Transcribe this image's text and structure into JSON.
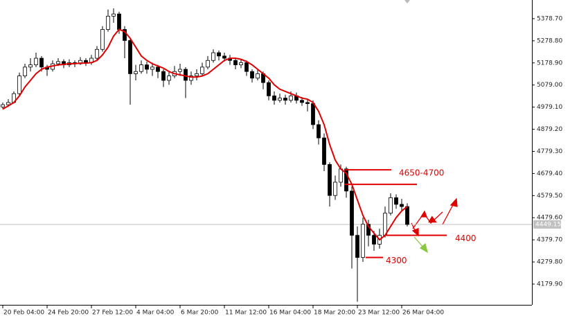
{
  "chart_data": {
    "type": "candlestick",
    "categories": [
      "20 Feb 04:00",
      null,
      null,
      null,
      null,
      null,
      null,
      null,
      "24 Feb 20:00",
      null,
      null,
      null,
      null,
      null,
      null,
      null,
      "27 Feb 12:00",
      null,
      null,
      null,
      null,
      null,
      null,
      null,
      "4 Mar 04:00",
      null,
      null,
      null,
      null,
      null,
      null,
      null,
      "6 Mar 20:00",
      null,
      null,
      null,
      null,
      null,
      null,
      null,
      "11 Mar 12:00",
      null,
      null,
      null,
      null,
      null,
      null,
      null,
      "16 Mar 04:00",
      null,
      null,
      null,
      null,
      null,
      null,
      null,
      "18 Mar 20:00",
      null,
      null,
      null,
      null,
      null,
      null,
      null,
      "23 Mar 12:00",
      null,
      null,
      null,
      null,
      null,
      null,
      null,
      "26 Mar 04:00",
      null
    ],
    "ohlc": [
      [
        4980,
        5000,
        4970,
        4990
      ],
      [
        4990,
        5015,
        4980,
        5000
      ],
      [
        5000,
        5050,
        4995,
        5040
      ],
      [
        5040,
        5135,
        5030,
        5120
      ],
      [
        5120,
        5175,
        5110,
        5160
      ],
      [
        5160,
        5200,
        5140,
        5170
      ],
      [
        5170,
        5225,
        5160,
        5200
      ],
      [
        5200,
        5210,
        5140,
        5160
      ],
      [
        5160,
        5170,
        5120,
        5150
      ],
      [
        5150,
        5190,
        5140,
        5175
      ],
      [
        5175,
        5200,
        5165,
        5185
      ],
      [
        5185,
        5195,
        5155,
        5170
      ],
      [
        5170,
        5195,
        5160,
        5180
      ],
      [
        5180,
        5190,
        5160,
        5175
      ],
      [
        5175,
        5205,
        5170,
        5190
      ],
      [
        5190,
        5200,
        5165,
        5180
      ],
      [
        5180,
        5215,
        5170,
        5200
      ],
      [
        5200,
        5255,
        5190,
        5240
      ],
      [
        5240,
        5345,
        5230,
        5330
      ],
      [
        5330,
        5420,
        5320,
        5390
      ],
      [
        5390,
        5425,
        5360,
        5400
      ],
      [
        5400,
        5410,
        5310,
        5330
      ],
      [
        5330,
        5345,
        5200,
        5280
      ],
      [
        5280,
        5290,
        4990,
        5130
      ],
      [
        5130,
        5170,
        5100,
        5140
      ],
      [
        5140,
        5190,
        5130,
        5170
      ],
      [
        5170,
        5185,
        5130,
        5150
      ],
      [
        5150,
        5180,
        5120,
        5160
      ],
      [
        5160,
        5170,
        5110,
        5140
      ],
      [
        5140,
        5150,
        5070,
        5100
      ],
      [
        5100,
        5140,
        5080,
        5120
      ],
      [
        5120,
        5165,
        5110,
        5140
      ],
      [
        5140,
        5175,
        5120,
        5150
      ],
      [
        5150,
        5160,
        5020,
        5100
      ],
      [
        5100,
        5140,
        5080,
        5120
      ],
      [
        5120,
        5150,
        5100,
        5130
      ],
      [
        5130,
        5180,
        5120,
        5160
      ],
      [
        5160,
        5210,
        5150,
        5190
      ],
      [
        5190,
        5240,
        5180,
        5225
      ],
      [
        5225,
        5235,
        5190,
        5210
      ],
      [
        5210,
        5225,
        5185,
        5200
      ],
      [
        5200,
        5215,
        5170,
        5190
      ],
      [
        5190,
        5200,
        5150,
        5170
      ],
      [
        5170,
        5195,
        5155,
        5180
      ],
      [
        5180,
        5190,
        5120,
        5140
      ],
      [
        5140,
        5150,
        5090,
        5110
      ],
      [
        5110,
        5150,
        5100,
        5130
      ],
      [
        5130,
        5140,
        5060,
        5090
      ],
      [
        5090,
        5100,
        5010,
        5030
      ],
      [
        5030,
        5050,
        4990,
        5010
      ],
      [
        5010,
        5040,
        5000,
        5020
      ],
      [
        5020,
        5035,
        4990,
        5010
      ],
      [
        5010,
        5050,
        5000,
        5030
      ],
      [
        5030,
        5045,
        4995,
        5010
      ],
      [
        5010,
        5025,
        4985,
        5000
      ],
      [
        5000,
        5015,
        4960,
        4995
      ],
      [
        4995,
        5010,
        4880,
        4900
      ],
      [
        4900,
        4920,
        4810,
        4840
      ],
      [
        4840,
        4860,
        4690,
        4720
      ],
      [
        4720,
        4730,
        4530,
        4580
      ],
      [
        4580,
        4670,
        4560,
        4640
      ],
      [
        4640,
        4720,
        4620,
        4700
      ],
      [
        4700,
        4710,
        4570,
        4600
      ],
      [
        4600,
        4620,
        4250,
        4400
      ],
      [
        4400,
        4440,
        4100,
        4300
      ],
      [
        4300,
        4480,
        4280,
        4450
      ],
      [
        4450,
        4470,
        4350,
        4400
      ],
      [
        4400,
        4420,
        4330,
        4360
      ],
      [
        4360,
        4430,
        4340,
        4400
      ],
      [
        4400,
        4530,
        4390,
        4500
      ],
      [
        4500,
        4590,
        4490,
        4570
      ],
      [
        4570,
        4585,
        4520,
        4540
      ],
      [
        4540,
        4565,
        4510,
        4530
      ],
      [
        4530,
        4545,
        4440,
        4449.15
      ]
    ],
    "ma": {
      "color": "#e00000",
      "values": [
        4970,
        4985,
        5000,
        5030,
        5070,
        5100,
        5130,
        5150,
        5160,
        5165,
        5170,
        5172,
        5175,
        5175,
        5178,
        5178,
        5180,
        5190,
        5215,
        5250,
        5300,
        5330,
        5320,
        5290,
        5250,
        5210,
        5190,
        5175,
        5165,
        5155,
        5140,
        5130,
        5125,
        5120,
        5115,
        5115,
        5120,
        5130,
        5150,
        5170,
        5190,
        5200,
        5200,
        5195,
        5185,
        5170,
        5150,
        5130,
        5110,
        5080,
        5060,
        5050,
        5040,
        5030,
        5020,
        5015,
        5000,
        4960,
        4900,
        4810,
        4740,
        4700,
        4680,
        4630,
        4560,
        4490,
        4440,
        4410,
        4380,
        4400,
        4440,
        4480,
        4510,
        4530
      ]
    },
    "ylim": [
      4086,
      5463
    ],
    "yticks": [
      {
        "value": 5378.7,
        "label": "5378.70"
      },
      {
        "value": 5278.8,
        "label": "5278.80"
      },
      {
        "value": 5178.9,
        "label": "5178.90"
      },
      {
        "value": 5079,
        "label": "5079.00"
      },
      {
        "value": 4979.1,
        "label": "4979.10"
      },
      {
        "value": 4879.2,
        "label": "4879.20"
      },
      {
        "value": 4779.3,
        "label": "4779.30"
      },
      {
        "value": 4679.4,
        "label": "4679.40"
      },
      {
        "value": 4579.5,
        "label": "4579.50"
      },
      {
        "value": 4479.6,
        "label": "4479.60"
      },
      {
        "value": 4379.7,
        "label": "4379.70"
      },
      {
        "value": 4279.8,
        "label": "4279.80"
      },
      {
        "value": 4179.9,
        "label": "4179.90"
      }
    ],
    "last_price": 4449.15,
    "levels": [
      {
        "label": "4650-4700",
        "value": 4696
      },
      {
        "value": 4630
      },
      {
        "label": "4400",
        "value": 4400
      },
      {
        "label": "4300",
        "value": 4300
      }
    ],
    "level_color": "#e00000"
  }
}
